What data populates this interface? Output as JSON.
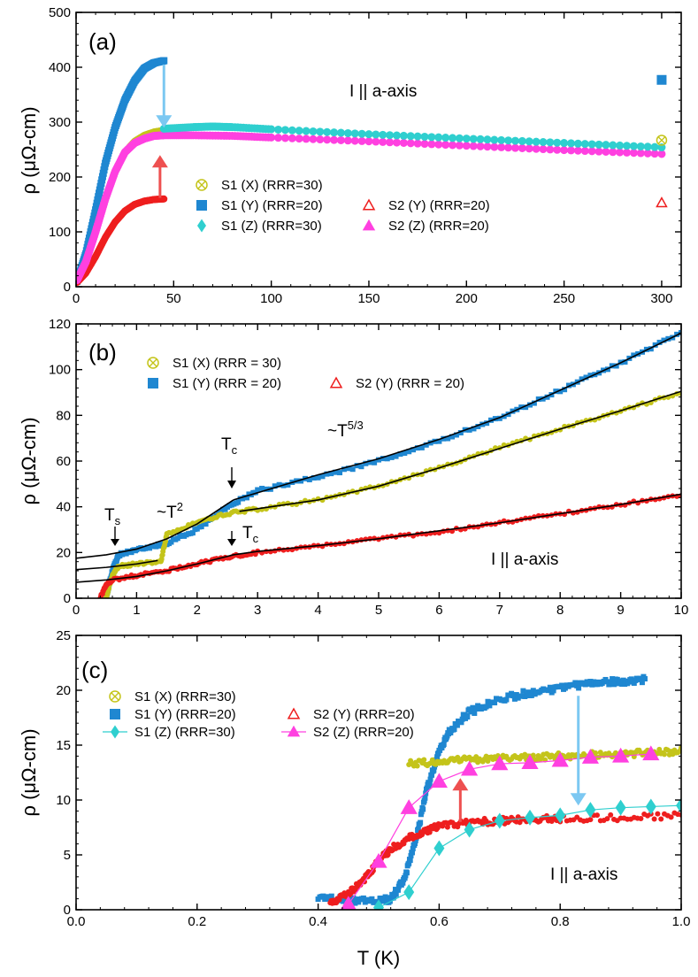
{
  "colors": {
    "S1X": "#c4c41a",
    "S1Y": "#1f87d1",
    "S1Z": "#2fcfcf",
    "S2Y": "#ee1e1e",
    "S2Z": "#ff40e0",
    "arrow_blue": "#7cc8f2",
    "arrow_red": "#ee5050"
  },
  "xlabel": "T (K)",
  "chart_data": [
    {
      "type": "scatter",
      "panel": "(a)",
      "ylabel": "ρ (μΩ-cm)",
      "xlim": [
        0,
        310
      ],
      "ylim": [
        0,
        500
      ],
      "xticks": [
        "0",
        "50",
        "100",
        "150",
        "200",
        "250",
        "300"
      ],
      "xtick_values": [
        0,
        50,
        100,
        150,
        200,
        250,
        300
      ],
      "yticks": [
        "0",
        "100",
        "200",
        "300",
        "400",
        "500"
      ],
      "ytick_values": [
        0,
        100,
        200,
        300,
        400,
        500
      ],
      "annotation": "I || a-axis",
      "legend": [
        {
          "key": "S1X",
          "label": "S1 (X) (RRR=30)",
          "marker": "circle-x"
        },
        {
          "key": "S1Y",
          "label": "S1 (Y) (RRR=20)",
          "marker": "square"
        },
        {
          "key": "S1Z",
          "label": "S1 (Z) (RRR=30)",
          "marker": "diamond"
        },
        {
          "key": "S2Y",
          "label": "S2 (Y) (RRR=20)",
          "marker": "triangle-open"
        },
        {
          "key": "S2Z",
          "label": "S2 (Z) (RRR=20)",
          "marker": "triangle"
        }
      ],
      "series": [
        {
          "key": "S1Y",
          "x": [
            0.5,
            5,
            10,
            15,
            20,
            25,
            30,
            35,
            40,
            45
          ],
          "y": [
            10,
            60,
            140,
            225,
            290,
            340,
            375,
            398,
            408,
            412
          ]
        },
        {
          "key": "S1X",
          "x": [
            0.5,
            5,
            10,
            15,
            20,
            25,
            30,
            35,
            40,
            45
          ],
          "y": [
            14,
            45,
            100,
            160,
            210,
            245,
            265,
            276,
            282,
            285
          ]
        },
        {
          "key": "S2Y",
          "x": [
            0.5,
            5,
            10,
            15,
            20,
            25,
            30,
            35,
            40,
            45
          ],
          "y": [
            8,
            25,
            55,
            90,
            118,
            138,
            150,
            156,
            159,
            160
          ]
        },
        {
          "key": "S2Z",
          "x": [
            0.5,
            5,
            10,
            15,
            20,
            25,
            30,
            35,
            40,
            45,
            60,
            80,
            100,
            150,
            200,
            250,
            300
          ],
          "y": [
            12,
            45,
            100,
            160,
            210,
            245,
            262,
            270,
            275,
            276,
            276,
            275,
            272,
            265,
            257,
            249,
            242
          ]
        },
        {
          "key": "S1Z",
          "x": [
            45,
            60,
            70,
            80,
            100,
            150,
            200,
            250,
            300
          ],
          "y": [
            288,
            291,
            292,
            291,
            287,
            278,
            270,
            262,
            254
          ]
        }
      ],
      "extra_points": [
        {
          "key": "S1Y",
          "x": 300,
          "y": 377
        },
        {
          "key": "S1X",
          "x": 300,
          "y": 267
        },
        {
          "key": "S2Y",
          "x": 300,
          "y": 153
        }
      ],
      "arrows": [
        {
          "color_key": "arrow_blue",
          "x": 45,
          "y_from": 405,
          "y_to": 290
        },
        {
          "color_key": "arrow_red",
          "x": 43,
          "y_from": 162,
          "y_to": 240
        }
      ]
    },
    {
      "type": "line",
      "panel": "(b)",
      "ylabel": "ρ (μΩ-cm)",
      "xlim": [
        0,
        10
      ],
      "ylim": [
        0,
        120
      ],
      "xticks": [
        "0",
        "1",
        "2",
        "3",
        "4",
        "5",
        "6",
        "7",
        "8",
        "9",
        "10"
      ],
      "xtick_values": [
        0,
        1,
        2,
        3,
        4,
        5,
        6,
        7,
        8,
        9,
        10
      ],
      "yticks": [
        "0",
        "20",
        "40",
        "60",
        "80",
        "100",
        "120"
      ],
      "ytick_values": [
        0,
        20,
        40,
        60,
        80,
        100,
        120
      ],
      "annotation": "I || a-axis",
      "legend": [
        {
          "key": "S1X",
          "label": "S1 (X) (RRR = 30)",
          "marker": "circle-x"
        },
        {
          "key": "S1Y",
          "label": "S1 (Y) (RRR = 20)",
          "marker": "square"
        },
        {
          "key": "S2Y",
          "label": "S2 (Y) (RRR = 20)",
          "marker": "triangle-open"
        }
      ],
      "labels": {
        "ts": "Ts",
        "t2": "~T2",
        "tc1": "Tc",
        "tc2": "Tc",
        "t53": "~T5/3"
      },
      "series": [
        {
          "key": "S1Y",
          "x": [
            0.5,
            0.6,
            0.7,
            1.0,
            1.5,
            2.0,
            2.5,
            3,
            4,
            5,
            6,
            7,
            8,
            9,
            10
          ],
          "y": [
            0.5,
            12,
            19,
            21,
            24,
            30,
            40,
            47,
            53,
            60,
            69,
            79,
            91,
            103,
            116
          ]
        },
        {
          "key": "S1X",
          "x": [
            0.5,
            0.6,
            0.7,
            1.0,
            1.4,
            1.5,
            2.0,
            2.5,
            3,
            4,
            5,
            6,
            7,
            8,
            9,
            10
          ],
          "y": [
            0.5,
            10,
            14,
            15,
            16,
            28,
            33,
            37,
            39,
            43,
            49,
            57,
            66,
            74,
            82,
            90
          ]
        },
        {
          "key": "S2Y",
          "x": [
            0.4,
            0.5,
            0.6,
            1.0,
            1.5,
            2.0,
            2.5,
            3,
            4,
            5,
            6,
            7,
            8,
            9,
            10
          ],
          "y": [
            0.5,
            6,
            8,
            10,
            12,
            15,
            18,
            20,
            23,
            26,
            29,
            33,
            37,
            41,
            45
          ]
        }
      ],
      "fits": [
        {
          "x": [
            0,
            0.5,
            1.0,
            1.5,
            2.0,
            2.6
          ],
          "y": [
            17.5,
            19,
            21.5,
            26,
            32.5,
            43
          ]
        },
        {
          "x": [
            2.6,
            4,
            5,
            6,
            7,
            8,
            9,
            10
          ],
          "y": [
            43,
            54,
            61,
            69.5,
            79,
            91,
            103,
            116
          ]
        },
        {
          "x": [
            0,
            0.5,
            1.0,
            1.35
          ],
          "y": [
            12.5,
            13.5,
            15,
            16.5
          ]
        },
        {
          "x": [
            2.7,
            4,
            5,
            6,
            7,
            8,
            9,
            10
          ],
          "y": [
            38,
            43,
            49,
            57,
            65.5,
            74,
            82,
            90.5
          ]
        },
        {
          "x": [
            0,
            0.5,
            1.0,
            1.5,
            2.0,
            2.6,
            3,
            4,
            5,
            6,
            7,
            8,
            9,
            10
          ],
          "y": [
            7,
            8,
            9.5,
            12,
            15,
            19,
            20.5,
            23,
            26,
            29.5,
            33,
            37,
            41,
            45.5
          ]
        }
      ]
    },
    {
      "type": "scatter",
      "panel": "(c)",
      "ylabel": "ρ (μΩ-cm)",
      "xlim": [
        0.0,
        1.0
      ],
      "ylim": [
        0,
        25
      ],
      "xticks": [
        "0.0",
        "0.2",
        "0.4",
        "0.6",
        "0.8",
        "1.0"
      ],
      "xtick_values": [
        0.0,
        0.2,
        0.4,
        0.6,
        0.8,
        1.0
      ],
      "yticks": [
        "0",
        "5",
        "10",
        "15",
        "20",
        "25"
      ],
      "ytick_values": [
        0,
        5,
        10,
        15,
        20,
        25
      ],
      "annotation": "I || a-axis",
      "legend": [
        {
          "key": "S1X",
          "label": "S1 (X) (RRR=30)",
          "marker": "circle-x"
        },
        {
          "key": "S1Y",
          "label": "S1 (Y) (RRR=20)",
          "marker": "square"
        },
        {
          "key": "S1Z",
          "label": "S1 (Z) (RRR=30)",
          "marker": "diamond-line"
        },
        {
          "key": "S2Y",
          "label": "S2 (Y) (RRR=20)",
          "marker": "triangle-open"
        },
        {
          "key": "S2Z",
          "label": "S2 (Z) (RRR=20)",
          "marker": "triangle-line"
        }
      ],
      "series": [
        {
          "key": "S1Y",
          "x": [
            0.4,
            0.45,
            0.5,
            0.52,
            0.54,
            0.56,
            0.58,
            0.6,
            0.62,
            0.65,
            0.7,
            0.75,
            0.8,
            0.85,
            0.9,
            0.94
          ],
          "y": [
            1,
            0.9,
            0.8,
            1.0,
            2.5,
            6,
            11,
            14.5,
            16.5,
            18,
            19.2,
            19.8,
            20.2,
            20.6,
            20.8,
            21
          ]
        },
        {
          "key": "S1X",
          "x": [
            0.55,
            0.6,
            0.65,
            0.7,
            0.75,
            0.8,
            0.85,
            0.9,
            0.95,
            1.0
          ],
          "y": [
            13.3,
            13.5,
            13.7,
            13.8,
            13.9,
            14.0,
            14.1,
            14.2,
            14.3,
            14.5
          ]
        },
        {
          "key": "S2Y",
          "x": [
            0.42,
            0.45,
            0.48,
            0.5,
            0.52,
            0.55,
            0.58,
            0.6,
            0.65,
            0.7,
            0.75,
            0.8,
            0.9,
            1.0
          ],
          "y": [
            0.5,
            1.5,
            3,
            4.5,
            5.5,
            6.5,
            7.2,
            7.6,
            8.0,
            8.1,
            8.2,
            8.3,
            8.4,
            8.6
          ]
        }
      ],
      "line_series": [
        {
          "key": "S1Z",
          "x": [
            0.5,
            0.55,
            0.6,
            0.65,
            0.7,
            0.75,
            0.8,
            0.85,
            0.9,
            0.95,
            1.0
          ],
          "y": [
            0.2,
            1.6,
            5.6,
            7.3,
            8.1,
            8.4,
            8.6,
            9.1,
            9.3,
            9.4,
            9.5
          ]
        },
        {
          "key": "S2Z",
          "x": [
            0.45,
            0.5,
            0.55,
            0.6,
            0.65,
            0.7,
            0.75,
            0.8,
            0.85,
            0.9,
            0.95
          ],
          "y": [
            0.5,
            4.4,
            9.3,
            11.7,
            12.8,
            13.3,
            13.4,
            13.6,
            13.9,
            14.0,
            14.2
          ]
        }
      ],
      "arrows": [
        {
          "color_key": "arrow_blue",
          "x": 0.83,
          "y_from": 19.5,
          "y_to": 9.5
        },
        {
          "color_key": "arrow_red",
          "x": 0.635,
          "y_from": 8.0,
          "y_to": 12.0
        }
      ]
    }
  ]
}
